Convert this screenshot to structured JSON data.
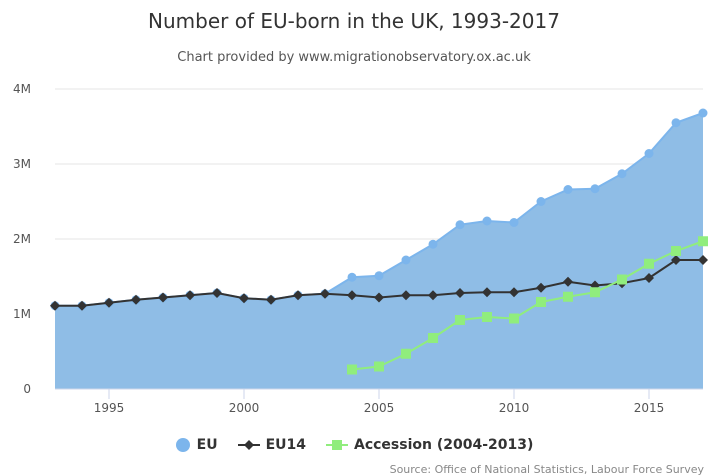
{
  "chart_data": {
    "type": "area",
    "title": "Number of EU-born in the UK, 1993-2017",
    "subtitle": "Chart provided by www.migrationobservatory.ox.ac.uk",
    "source": "Source: Office of National Statistics, Labour Force Survey",
    "xlabel": "",
    "ylabel": "",
    "xlim": [
      1993,
      2017
    ],
    "ylim": [
      0,
      4000000
    ],
    "x_ticks": [
      1995,
      2000,
      2005,
      2010,
      2015
    ],
    "y_ticks": [
      {
        "value": 0,
        "label": "0"
      },
      {
        "value": 1000000,
        "label": "1M"
      },
      {
        "value": 2000000,
        "label": "2M"
      },
      {
        "value": 3000000,
        "label": "3M"
      },
      {
        "value": 4000000,
        "label": "4M"
      }
    ],
    "grid": "horizontal",
    "legend_position": "bottom-center",
    "series": [
      {
        "name": "EU",
        "kind": "area",
        "color": "#7cb5ec",
        "fill": "#8fbde6",
        "marker": "circle",
        "x": [
          1993,
          1994,
          1995,
          1996,
          1997,
          1998,
          1999,
          2000,
          2001,
          2002,
          2003,
          2004,
          2005,
          2006,
          2007,
          2008,
          2009,
          2010,
          2011,
          2012,
          2013,
          2014,
          2015,
          2016,
          2017
        ],
        "values": [
          1110000,
          1110000,
          1150000,
          1190000,
          1220000,
          1250000,
          1280000,
          1210000,
          1190000,
          1250000,
          1270000,
          1490000,
          1510000,
          1720000,
          1930000,
          2190000,
          2240000,
          2220000,
          2500000,
          2660000,
          2670000,
          2870000,
          3140000,
          3550000,
          3680000
        ]
      },
      {
        "name": "EU14",
        "kind": "line",
        "color": "#333333",
        "marker": "diamond",
        "x": [
          1993,
          1994,
          1995,
          1996,
          1997,
          1998,
          1999,
          2000,
          2001,
          2002,
          2003,
          2004,
          2005,
          2006,
          2007,
          2008,
          2009,
          2010,
          2011,
          2012,
          2013,
          2014,
          2015,
          2016,
          2017
        ],
        "values": [
          1110000,
          1110000,
          1150000,
          1190000,
          1220000,
          1250000,
          1280000,
          1210000,
          1190000,
          1250000,
          1270000,
          1250000,
          1220000,
          1250000,
          1250000,
          1280000,
          1290000,
          1290000,
          1350000,
          1430000,
          1380000,
          1410000,
          1480000,
          1720000,
          1720000
        ]
      },
      {
        "name": "Accession (2004-2013)",
        "kind": "line",
        "color": "#90ed7d",
        "marker": "square",
        "x": [
          2004,
          2005,
          2006,
          2007,
          2008,
          2009,
          2010,
          2011,
          2012,
          2013,
          2014,
          2015,
          2016,
          2017
        ],
        "values": [
          260000,
          300000,
          470000,
          680000,
          920000,
          960000,
          940000,
          1160000,
          1230000,
          1290000,
          1460000,
          1670000,
          1840000,
          1970000
        ]
      }
    ]
  }
}
